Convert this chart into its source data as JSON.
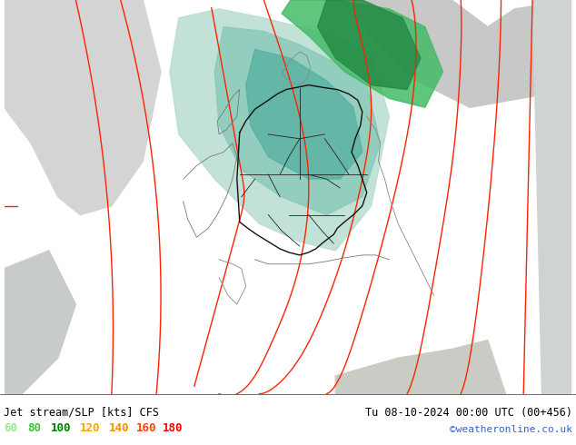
{
  "title_left": "Jet stream/SLP [kts] CFS",
  "title_right": "Tu 08-10-2024 00:00 UTC (00+456)",
  "credit": "©weatheronline.co.uk",
  "legend_values": [
    60,
    80,
    100,
    120,
    140,
    160,
    180
  ],
  "legend_colors": [
    "#90ee90",
    "#32cd32",
    "#008000",
    "#ffa500",
    "#ff8c00",
    "#ff4500",
    "#ff0000"
  ],
  "fig_width": 6.34,
  "fig_height": 4.9,
  "dpi": 100,
  "bg_light_green": "#ccee99",
  "bg_grey": "#d4d4d4",
  "bg_grey2": "#c8c8c8",
  "jet_teal_light": "#a8d8c8",
  "jet_teal_medium": "#70c0b0",
  "jet_green_bright": "#44bb66",
  "jet_green_dark": "#228844",
  "slp_color": "#ff2200",
  "border_dark": "#222222",
  "border_grey": "#888888",
  "footer_line_color": "#000000"
}
